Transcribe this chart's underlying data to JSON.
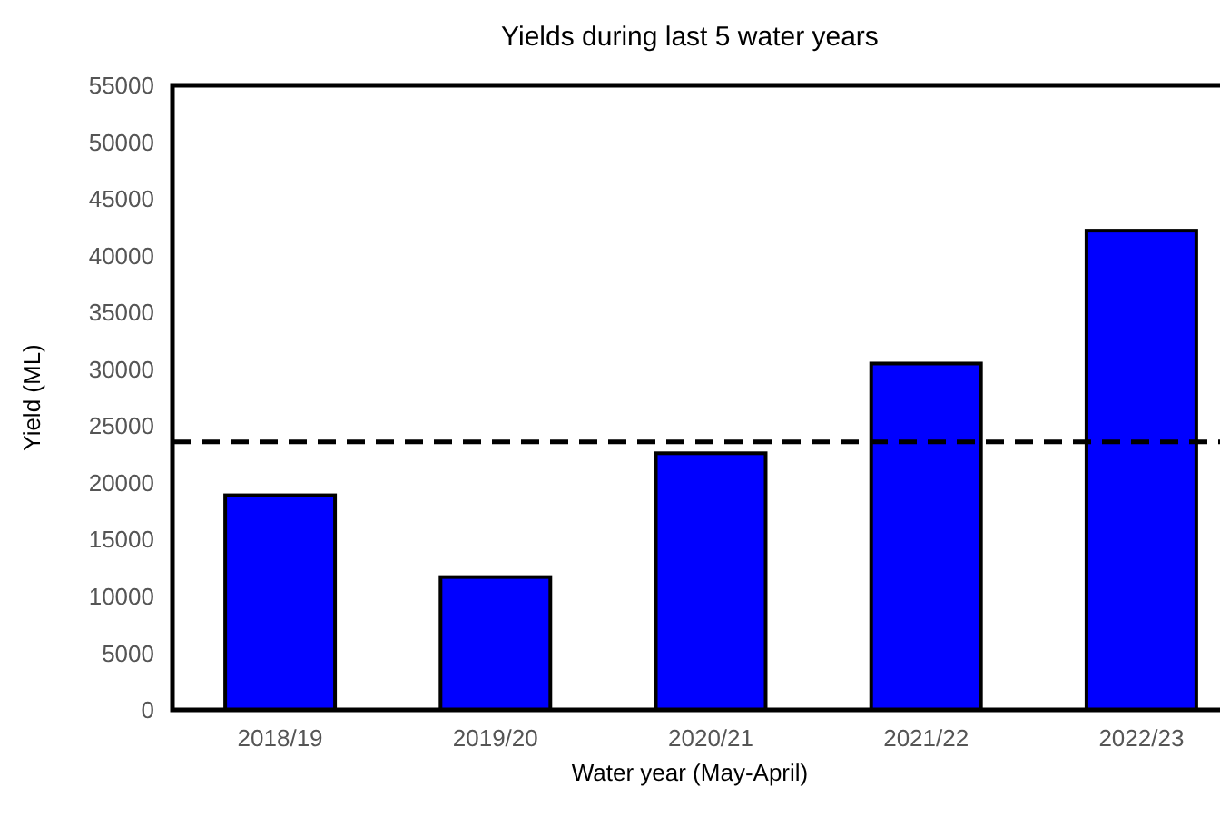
{
  "chart_data": {
    "type": "bar",
    "title": "Yields during last 5 water years",
    "xlabel": "Water year (May-April)",
    "ylabel": "Yield (ML)",
    "categories": [
      "2018/19",
      "2019/20",
      "2020/21",
      "2021/22",
      "2022/23"
    ],
    "values": [
      18900,
      11700,
      22600,
      30500,
      42200
    ],
    "color": "#0000ff",
    "ylim": [
      0,
      55000
    ],
    "yticks": [
      0,
      5000,
      10000,
      15000,
      20000,
      25000,
      30000,
      35000,
      40000,
      45000,
      50000,
      55000
    ],
    "ref_lines": [
      {
        "axis": "y",
        "value": 23600,
        "color": "#000000",
        "line_style": "dashed"
      }
    ]
  }
}
